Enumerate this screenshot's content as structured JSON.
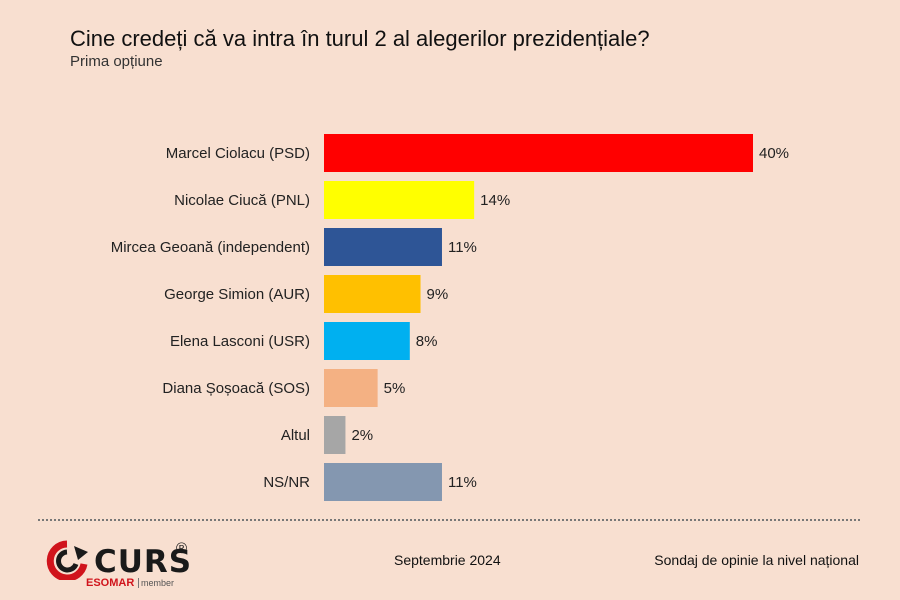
{
  "header": {
    "title": "Cine credeți că va intra în turul 2 al alegerilor prezidențiale?",
    "subtitle": "Prima opțiune"
  },
  "chart_data": {
    "type": "bar",
    "orientation": "horizontal",
    "title": "Cine credeți că va intra în turul 2 al alegerilor prezidențiale?",
    "subtitle": "Prima opțiune",
    "categories": [
      "Marcel Ciolacu (PSD)",
      "Nicolae Ciucă (PNL)",
      "Mircea Geoană (independent)",
      "George Simion (AUR)",
      "Elena Lasconi (USR)",
      "Diana Șoșoacă (SOS)",
      "Altul",
      "NS/NR"
    ],
    "values": [
      40,
      14,
      11,
      9,
      8,
      5,
      2,
      11
    ],
    "value_labels": [
      "40%",
      "14%",
      "11%",
      "9%",
      "8%",
      "5%",
      "2%",
      "11%"
    ],
    "colors": [
      "#ff0000",
      "#ffff00",
      "#2e5596",
      "#ffc000",
      "#00b0f0",
      "#f4b183",
      "#a6a6a6",
      "#8497b0"
    ],
    "unit": "%",
    "xlim": [
      0,
      40
    ],
    "grid": false
  },
  "footer": {
    "logo_text": "CURS",
    "logo_reg": "®",
    "esomar": "ESOMAR",
    "esomar_member": "member",
    "date": "Septembrie 2024",
    "note": "Sondaj de opinie la nivel național"
  }
}
